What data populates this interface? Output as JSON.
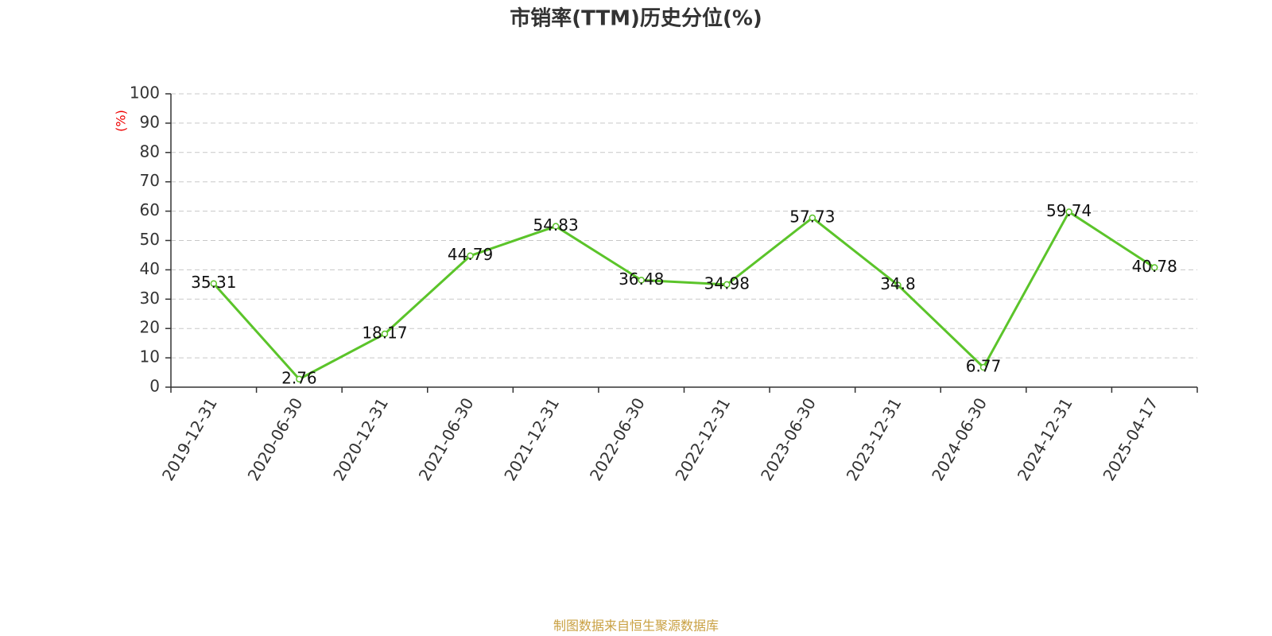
{
  "chart_data": {
    "type": "line",
    "title": "市销率(TTM)历史分位(%)",
    "y_label": "(%)",
    "source": "制图数据来自恒生聚源数据库",
    "categories": [
      "2019-12-31",
      "2020-06-30",
      "2020-12-31",
      "2021-06-30",
      "2021-12-31",
      "2022-06-30",
      "2022-12-31",
      "2023-06-30",
      "2023-12-31",
      "2024-06-30",
      "2024-12-31",
      "2025-04-17"
    ],
    "values": [
      35.31,
      2.76,
      18.17,
      44.79,
      54.83,
      36.48,
      34.98,
      57.73,
      34.8,
      6.77,
      59.74,
      40.78
    ],
    "color": "#5bc42a",
    "ylim": [
      0,
      100
    ],
    "yticks": [
      0,
      10,
      20,
      30,
      40,
      50,
      60,
      70,
      80,
      90,
      100
    ],
    "grid": true
  }
}
